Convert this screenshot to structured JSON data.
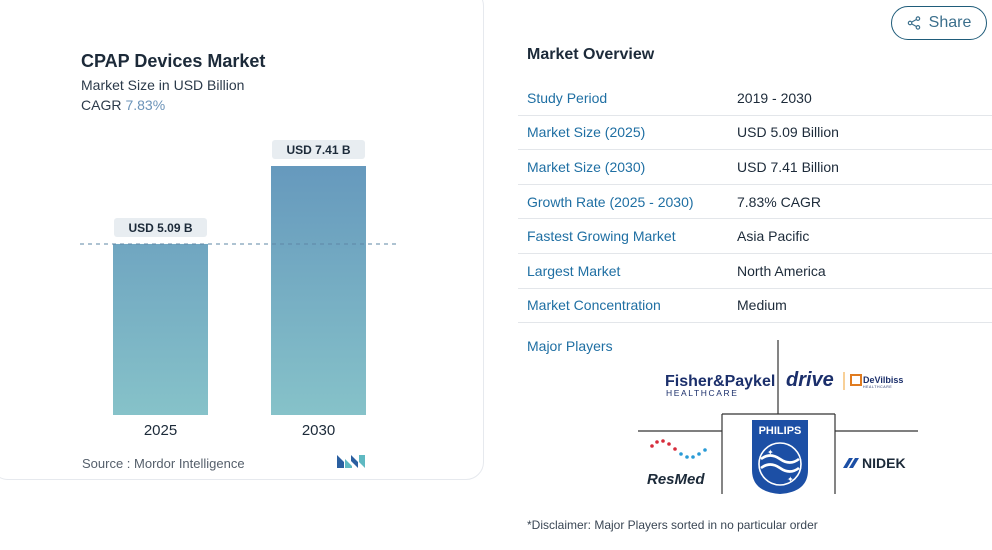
{
  "chart": {
    "title": "CPAP Devices Market",
    "subtitle": "Market Size in USD Billion",
    "cagr_label": "CAGR",
    "cagr_value": "7.83%",
    "source": "Source :  Mordor Intelligence"
  },
  "chart_data": {
    "type": "bar",
    "categories": [
      "2025",
      "2030"
    ],
    "values": [
      5.09,
      7.41
    ],
    "data_labels": [
      "USD 5.09 B",
      "USD 7.41 B"
    ],
    "title": "CPAP Devices Market",
    "subtitle": "Market Size in USD Billion",
    "xlabel": "",
    "ylabel": "",
    "ylim": [
      0,
      7.41
    ],
    "grid": false,
    "reference_line": 5.09,
    "colors": {
      "bar_top": "#6699bd",
      "bar_bottom": "#86c2c9",
      "label_bg": "#e8edf1",
      "ref_line": "#5e87a6"
    }
  },
  "share": {
    "label": "Share",
    "icon": "share-icon"
  },
  "overview": {
    "title": "Market Overview",
    "rows": [
      {
        "key": "Study Period",
        "value": "2019 - 2030"
      },
      {
        "key": "Market Size (2025)",
        "value": "USD 5.09 Billion"
      },
      {
        "key": "Market Size (2030)",
        "value": "USD 7.41 Billion"
      },
      {
        "key": "Growth Rate (2025 - 2030)",
        "value": "7.83% CAGR"
      },
      {
        "key": "Fastest Growing Market",
        "value": "Asia Pacific"
      },
      {
        "key": "Largest Market",
        "value": "North America"
      },
      {
        "key": "Market Concentration",
        "value": "Medium"
      }
    ]
  },
  "players": {
    "label": "Major Players",
    "logos": [
      {
        "name": "Fisher&Paykel",
        "sub": "HEALTHCARE"
      },
      {
        "name": "drive"
      },
      {
        "name": "DeVilbiss",
        "sub": "HEALTHCARE"
      },
      {
        "name": "PHILIPS"
      },
      {
        "name": "ResMed"
      },
      {
        "name": "NIDEK"
      }
    ]
  },
  "disclaimer": "*Disclaimer: Major Players sorted in no particular order"
}
